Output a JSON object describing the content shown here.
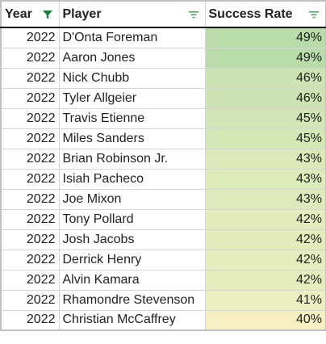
{
  "headers": {
    "year": "Year",
    "player": "Player",
    "rate": "Success Rate"
  },
  "filter_colors": {
    "active": "#188038",
    "inactive": "#5aa469"
  },
  "rows": [
    {
      "year": "2022",
      "player": "D'Onta Foreman",
      "rate": "49%",
      "color": "#b9dcaa"
    },
    {
      "year": "2022",
      "player": "Aaron Jones",
      "rate": "49%",
      "color": "#badcab"
    },
    {
      "year": "2022",
      "player": "Nick Chubb",
      "rate": "46%",
      "color": "#cce3b3"
    },
    {
      "year": "2022",
      "player": "Tyler Allgeier",
      "rate": "46%",
      "color": "#cde3b3"
    },
    {
      "year": "2022",
      "player": "Travis Etienne",
      "rate": "45%",
      "color": "#d2e5b6"
    },
    {
      "year": "2022",
      "player": "Miles Sanders",
      "rate": "45%",
      "color": "#d3e6b6"
    },
    {
      "year": "2022",
      "player": "Brian Robinson Jr.",
      "rate": "43%",
      "color": "#dde9ba"
    },
    {
      "year": "2022",
      "player": "Isiah Pacheco",
      "rate": "43%",
      "color": "#ddeaba"
    },
    {
      "year": "2022",
      "player": "Joe Mixon",
      "rate": "43%",
      "color": "#deeabb"
    },
    {
      "year": "2022",
      "player": "Tony Pollard",
      "rate": "42%",
      "color": "#e4ecbe"
    },
    {
      "year": "2022",
      "player": "Josh Jacobs",
      "rate": "42%",
      "color": "#e4ecbe"
    },
    {
      "year": "2022",
      "player": "Derrick Henry",
      "rate": "42%",
      "color": "#e5edbe"
    },
    {
      "year": "2022",
      "player": "Alvin Kamara",
      "rate": "42%",
      "color": "#e5edbe"
    },
    {
      "year": "2022",
      "player": "Rhamondre Stevenson",
      "rate": "41%",
      "color": "#ecefc1"
    },
    {
      "year": "2022",
      "player": "Christian McCaffrey",
      "rate": "40%",
      "color": "#f6efc4"
    }
  ]
}
